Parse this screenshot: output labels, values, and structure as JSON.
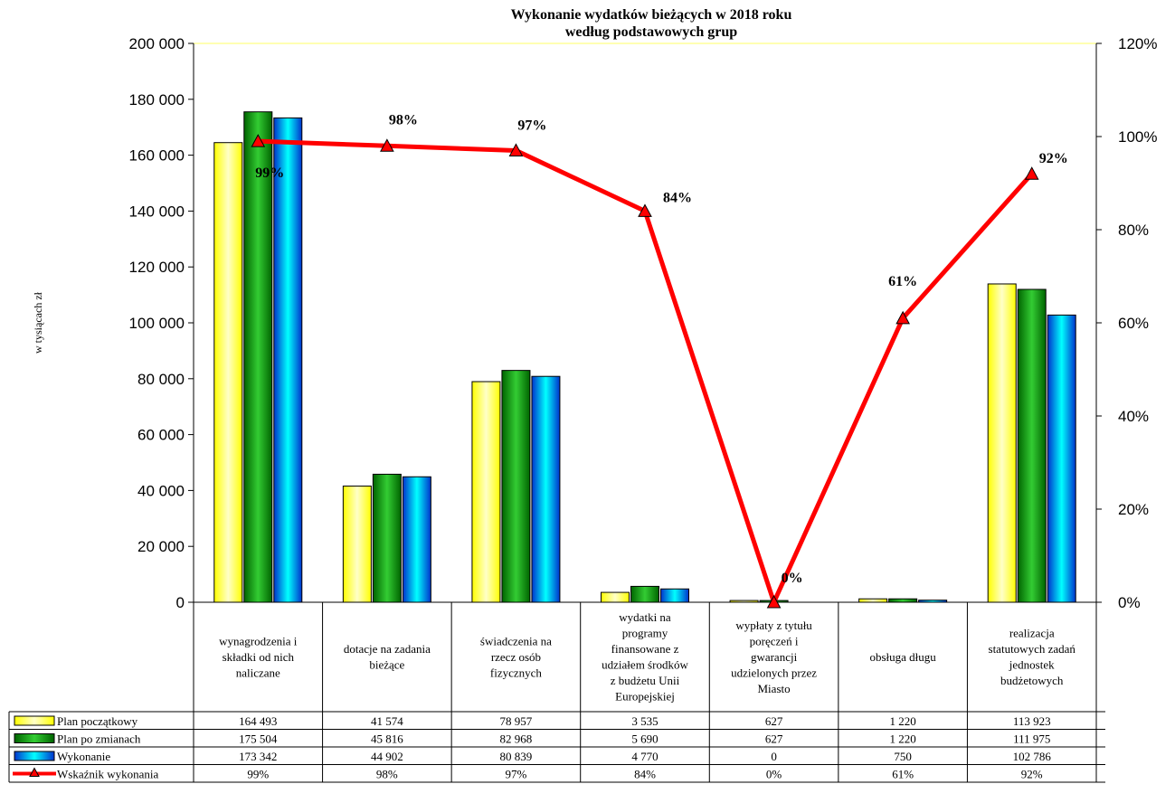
{
  "chart_data": {
    "type": "bar",
    "title_lines": [
      "Wykonanie wydatków bieżących  w  2018 roku",
      "według  podstawowych   grup"
    ],
    "ylabel": "w  tysiącach zł",
    "ylim": [
      0,
      200000
    ],
    "y2lim": [
      0,
      1.2
    ],
    "yticks": [
      "0",
      "20 000",
      "40 000",
      "60 000",
      "80 000",
      "100 000",
      "120 000",
      "140 000",
      "160 000",
      "180 000",
      "200 000"
    ],
    "y2ticks": [
      "0%",
      "20%",
      "40%",
      "60%",
      "80%",
      "100%",
      "120%"
    ],
    "categories": [
      [
        "wynagrodzenia i",
        "składki od nich",
        "naliczane"
      ],
      [
        "dotacje na zadania",
        "bieżące"
      ],
      [
        "świadczenia na",
        "rzecz osób",
        "fizycznych"
      ],
      [
        "wydatki na",
        "programy",
        "finansowane z",
        "udziałem środków",
        "z budżetu Unii",
        "Europejskiej"
      ],
      [
        "wypłaty z tytułu",
        "poręczeń i",
        "gwarancji",
        "udzielonych przez",
        "Miasto"
      ],
      [
        "obsługa długu"
      ],
      [
        "realizacja",
        "statutowych zadań",
        "jednostek",
        "budżetowych"
      ]
    ],
    "series": [
      {
        "name": "Plan początkowy",
        "values": [
          164493,
          41574,
          78957,
          3535,
          627,
          1220,
          113923
        ],
        "labels": [
          "164 493",
          "41 574",
          "78 957",
          "3 535",
          "627",
          "1 220",
          "113 923"
        ],
        "color": "#ffff00"
      },
      {
        "name": "Plan po zmianach",
        "values": [
          175504,
          45816,
          82968,
          5690,
          627,
          1220,
          111975
        ],
        "labels": [
          "175 504",
          "45 816",
          "82 968",
          "5 690",
          "627",
          "1 220",
          "111 975"
        ],
        "color": "#008000"
      },
      {
        "name": "Wykonanie",
        "values": [
          173342,
          44902,
          80839,
          4770,
          0,
          750,
          102786
        ],
        "labels": [
          "173 342",
          "44 902",
          "80 839",
          "4 770",
          "0",
          "750",
          "102 786"
        ],
        "color": "#00bfff"
      }
    ],
    "line_series": {
      "name": "Wskaźnik  wykonania",
      "values": [
        0.99,
        0.98,
        0.97,
        0.84,
        0.0,
        0.61,
        0.92
      ],
      "labels": [
        "99%",
        "98%",
        "97%",
        "84%",
        "0%",
        "61%",
        "92%"
      ],
      "point_labels": [
        "99%",
        "98%",
        "97%",
        "84%",
        "0%",
        "61%",
        "92%"
      ],
      "color": "#ff0000"
    },
    "legend": "bottom-table"
  }
}
